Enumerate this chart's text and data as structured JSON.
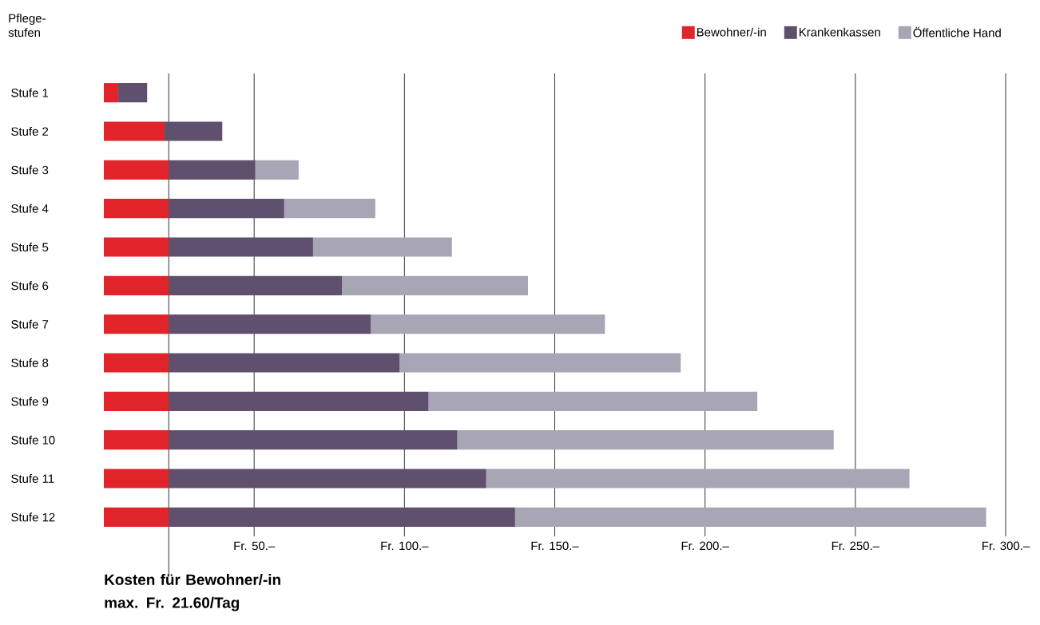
{
  "chart_data": {
    "type": "bar",
    "orientation": "horizontal",
    "stacked": true,
    "ylabel": "Pflege-stufen",
    "categories": [
      "Stufe 1",
      "Stufe 2",
      "Stufe 3",
      "Stufe 4",
      "Stufe 5",
      "Stufe 6",
      "Stufe 7",
      "Stufe 8",
      "Stufe 9",
      "Stufe 10",
      "Stufe 11",
      "Stufe 12"
    ],
    "series": [
      {
        "name": "Bewohner/-in",
        "color": "#e1232a",
        "values": [
          4.8,
          20.2,
          21.6,
          21.6,
          21.6,
          21.6,
          21.6,
          21.6,
          21.6,
          21.6,
          21.6,
          21.6
        ]
      },
      {
        "name": "Krankenkassen",
        "color": "#5f506d",
        "values": [
          9.6,
          19.2,
          28.8,
          38.4,
          48.0,
          57.6,
          67.2,
          76.8,
          86.4,
          96.0,
          105.6,
          115.2
        ]
      },
      {
        "name": "Öffentliche Hand",
        "color": "#a8a5b4",
        "values": [
          null,
          null,
          14.4,
          30.3,
          46.2,
          61.9,
          77.9,
          93.5,
          109.4,
          125.2,
          140.8,
          156.7
        ]
      }
    ],
    "xlim": [
      0,
      300
    ],
    "xticks": [
      {
        "value": 50,
        "label": "Fr. 50.–"
      },
      {
        "value": 100,
        "label": "Fr. 100.–"
      },
      {
        "value": 150,
        "label": "Fr. 150.–"
      },
      {
        "value": 200,
        "label": "Fr. 200.–"
      },
      {
        "value": 250,
        "label": "Fr. 250.–"
      },
      {
        "value": 300,
        "label": "Fr. 300.–"
      }
    ],
    "grid": "x",
    "legend": "top right",
    "ref_lines": [
      {
        "axis": "x",
        "value": 21.6,
        "label": "Kosten für Bewohner/-in max. Fr. 21.60/Tag",
        "color": "#000000"
      }
    ]
  }
}
